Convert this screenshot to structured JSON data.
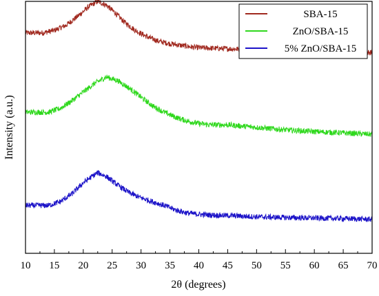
{
  "chart_data": {
    "type": "line",
    "xlabel": "2θ (degrees)",
    "ylabel": "Intensity (a.u.)",
    "xlim": [
      10,
      70
    ],
    "x_ticks": [
      10,
      15,
      20,
      25,
      30,
      35,
      40,
      45,
      50,
      55,
      60,
      65,
      70
    ],
    "y_ticks": "none",
    "grid": false,
    "legend_placement": "top-right",
    "series": [
      {
        "name": "SBA-15",
        "color": "#a0281e",
        "x": [
          10,
          13,
          15,
          17,
          19,
          21,
          22.5,
          24,
          25.5,
          27,
          29,
          31,
          33,
          35,
          37,
          39,
          41,
          45,
          50,
          55,
          60,
          65,
          70
        ],
        "y": [
          0.875,
          0.875,
          0.885,
          0.905,
          0.94,
          0.98,
          1.0,
          0.985,
          0.955,
          0.92,
          0.885,
          0.86,
          0.842,
          0.832,
          0.825,
          0.818,
          0.815,
          0.812,
          0.808,
          0.805,
          0.803,
          0.8,
          0.797
        ]
      },
      {
        "name": "ZnO/SBA-15",
        "color": "#2ed81c",
        "x": [
          10,
          12,
          14,
          16,
          18,
          20,
          22,
          24,
          26,
          28,
          30,
          32,
          34,
          36,
          38,
          40,
          42,
          45,
          50,
          55,
          60,
          65,
          70
        ],
        "y": [
          0.56,
          0.56,
          0.56,
          0.575,
          0.605,
          0.64,
          0.675,
          0.7,
          0.685,
          0.655,
          0.62,
          0.585,
          0.56,
          0.54,
          0.525,
          0.515,
          0.51,
          0.51,
          0.5,
          0.49,
          0.483,
          0.478,
          0.472
        ]
      },
      {
        "name": "5% ZnO/SBA-15",
        "color": "#1b12c8",
        "x": [
          10,
          12,
          14,
          16,
          18,
          20,
          21.5,
          22.5,
          24,
          26,
          28,
          30,
          32,
          34,
          36,
          38,
          40,
          42,
          45,
          50,
          55,
          60,
          65,
          70
        ],
        "y": [
          0.19,
          0.19,
          0.19,
          0.205,
          0.235,
          0.28,
          0.305,
          0.32,
          0.305,
          0.27,
          0.24,
          0.22,
          0.205,
          0.19,
          0.172,
          0.16,
          0.155,
          0.152,
          0.15,
          0.145,
          0.142,
          0.14,
          0.138,
          0.135
        ]
      }
    ]
  }
}
